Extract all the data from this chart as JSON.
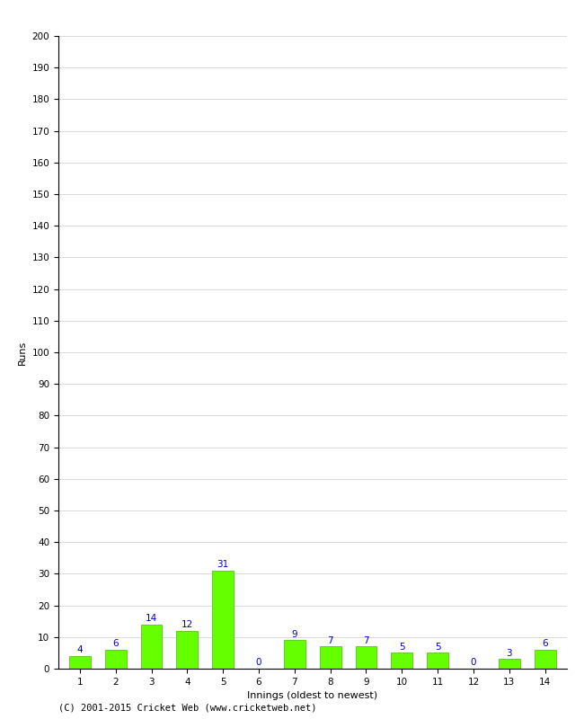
{
  "xlabel": "Innings (oldest to newest)",
  "ylabel": "Runs",
  "categories": [
    "1",
    "2",
    "3",
    "4",
    "5",
    "6",
    "7",
    "8",
    "9",
    "10",
    "11",
    "12",
    "13",
    "14"
  ],
  "values": [
    4,
    6,
    14,
    12,
    31,
    0,
    9,
    7,
    7,
    5,
    5,
    0,
    3,
    6
  ],
  "bar_color": "#66ff00",
  "bar_edge_color": "#44bb00",
  "label_color": "#0000cc",
  "ylim": [
    0,
    200
  ],
  "yticks": [
    0,
    10,
    20,
    30,
    40,
    50,
    60,
    70,
    80,
    90,
    100,
    110,
    120,
    130,
    140,
    150,
    160,
    170,
    180,
    190,
    200
  ],
  "background_color": "#ffffff",
  "grid_color": "#cccccc",
  "footer_text": "(C) 2001-2015 Cricket Web (www.cricketweb.net)",
  "label_fontsize": 7.5,
  "axis_label_fontsize": 8,
  "tick_fontsize": 7.5,
  "footer_fontsize": 7.5
}
